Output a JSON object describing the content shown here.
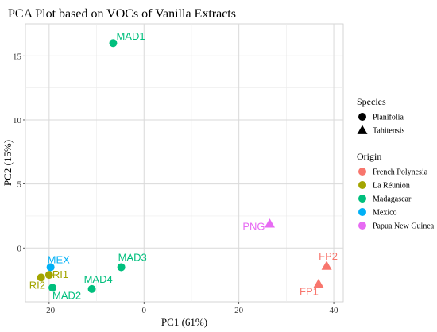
{
  "chart_data": {
    "type": "scatter",
    "title": "PCA Plot based on VOCs of Vanilla Extracts",
    "xlabel": "PC1 (61%)",
    "ylabel": "PC2 (15%)",
    "xlim": [
      -25,
      42
    ],
    "ylim": [
      -4.2,
      17.5
    ],
    "xticks": [
      -20,
      0,
      20,
      40
    ],
    "yticks": [
      0,
      5,
      10,
      15
    ],
    "grid": true,
    "legend_placement": "right",
    "legends": [
      {
        "title": "Species",
        "entries": [
          {
            "label": "Planifolia",
            "shape": "circle"
          },
          {
            "label": "Tahitensis",
            "shape": "triangle"
          }
        ]
      },
      {
        "title": "Origin",
        "entries": [
          {
            "label": "French Polynesia",
            "color": "#F8766D"
          },
          {
            "label": "La Réunion",
            "color": "#A3A500"
          },
          {
            "label": "Madagascar",
            "color": "#00BF7D"
          },
          {
            "label": "Mexico",
            "color": "#00B0F6"
          },
          {
            "label": "Papua New Guinea",
            "color": "#E76BF3"
          }
        ]
      }
    ],
    "points": [
      {
        "label": "MAD1",
        "x": -6.5,
        "y": 16.0,
        "origin": "Madagascar",
        "species": "Planifolia"
      },
      {
        "label": "PNG",
        "x": 26.5,
        "y": 1.9,
        "origin": "Papua New Guinea",
        "species": "Tahitensis"
      },
      {
        "label": "FP2",
        "x": 38.5,
        "y": -1.4,
        "origin": "French Polynesia",
        "species": "Tahitensis"
      },
      {
        "label": "FP1",
        "x": 36.8,
        "y": -2.8,
        "origin": "French Polynesia",
        "species": "Tahitensis"
      },
      {
        "label": "MAD3",
        "x": -4.8,
        "y": -1.5,
        "origin": "Madagascar",
        "species": "Planifolia"
      },
      {
        "label": "MAD4",
        "x": -11.0,
        "y": -3.2,
        "origin": "Madagascar",
        "species": "Planifolia"
      },
      {
        "label": "MAD2",
        "x": -19.3,
        "y": -3.1,
        "origin": "Madagascar",
        "species": "Planifolia"
      },
      {
        "label": "MEX",
        "x": -19.7,
        "y": -1.5,
        "origin": "Mexico",
        "species": "Planifolia"
      },
      {
        "label": "RI1",
        "x": -20.0,
        "y": -2.1,
        "origin": "La Réunion",
        "species": "Planifolia"
      },
      {
        "label": "RI2",
        "x": -21.7,
        "y": -2.3,
        "origin": "La Réunion",
        "species": "Planifolia"
      }
    ]
  }
}
